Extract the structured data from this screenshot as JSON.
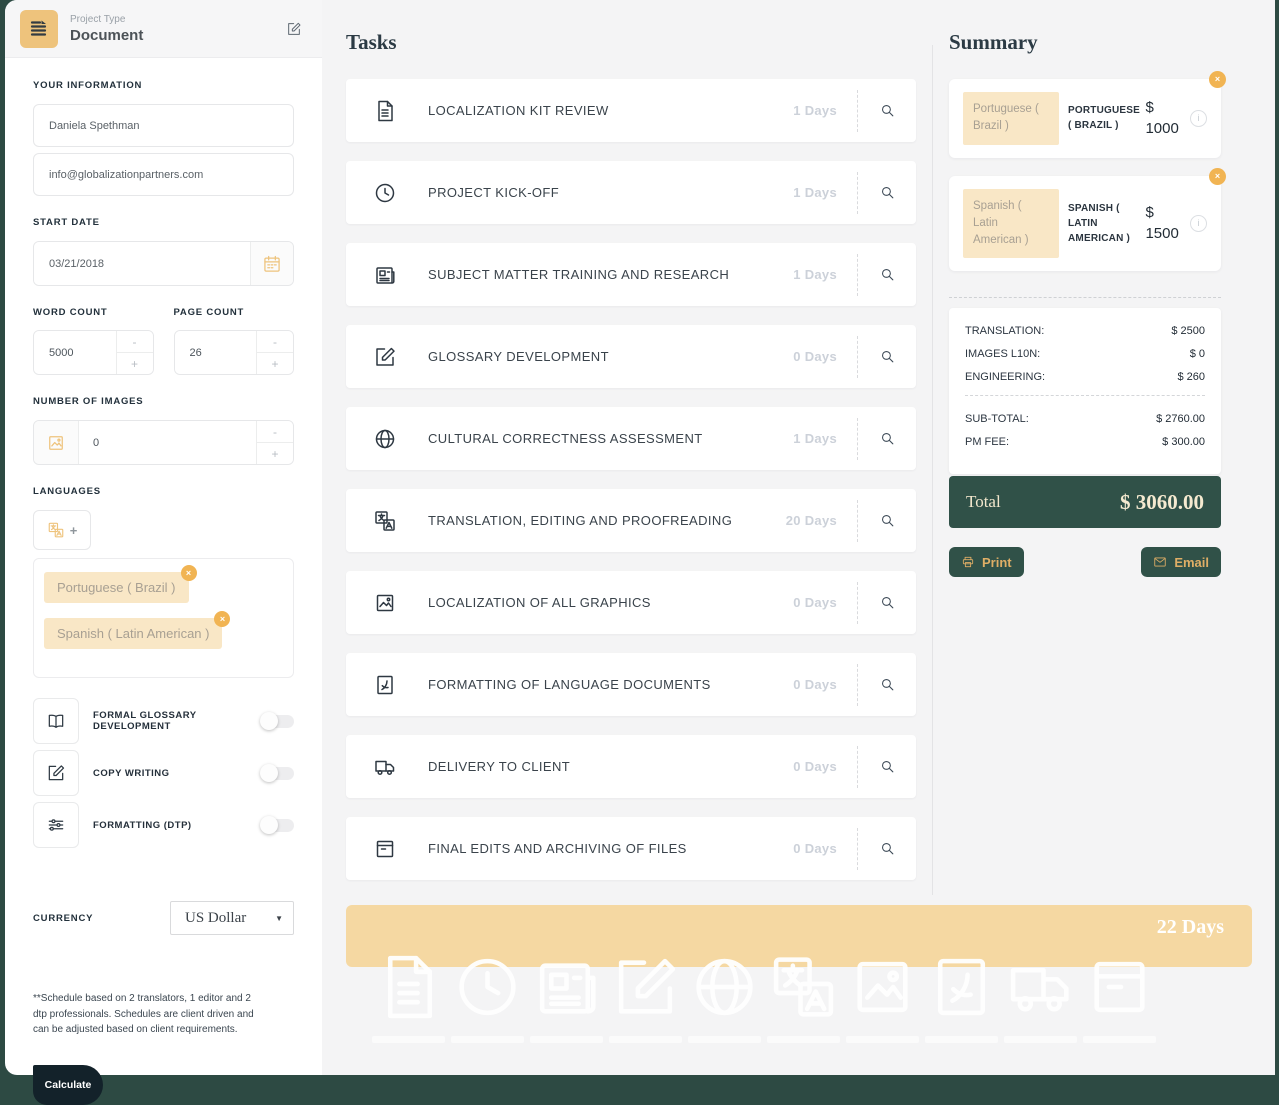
{
  "colors": {
    "green": "#305148",
    "gold": "#dfae66",
    "tan": "#eec37c",
    "chip": "#f9e7c6",
    "timeline": "#f5d8a2",
    "badge": "#f1b453",
    "calculate": "#13222a"
  },
  "sidebar": {
    "project_type": {
      "label": "Project Type",
      "value": "Document"
    },
    "your_information_label": "YOUR INFORMATION",
    "name_value": "Daniela Spethman",
    "email_value": "info@globalizationpartners.com",
    "start_date_label": "START DATE",
    "start_date_value": "03/21/2018",
    "word_count": {
      "label": "WORD COUNT",
      "value": "5000"
    },
    "page_count": {
      "label": "PAGE COUNT",
      "value": "26"
    },
    "number_of_images": {
      "label": "NUMBER OF IMAGES",
      "value": "0"
    },
    "languages_label": "LANGUAGES",
    "add_label": "+",
    "stepper": {
      "minus": "-",
      "plus": "+"
    },
    "language_chips": [
      {
        "label": "Portuguese ( Brazil )"
      },
      {
        "label": "Spanish ( Latin American )"
      }
    ],
    "toggles": [
      {
        "icon": "book-icon",
        "label": "FORMAL GLOSSARY DEVELOPMENT",
        "on": false
      },
      {
        "icon": "edit-square-icon",
        "label": "COPY WRITING",
        "on": false
      },
      {
        "icon": "sliders-icon",
        "label": "FORMATTING (DTP)",
        "on": false
      }
    ],
    "currency": {
      "label": "CURRENCY",
      "value": "US Dollar"
    },
    "note": "**Schedule based on 2 translators, 1 editor and 2 dtp professionals. Schedules are client driven and can be adjusted based on client requirements.",
    "calculate_label": "Calculate"
  },
  "tasks": {
    "title": "Tasks",
    "items": [
      {
        "icon": "document-icon",
        "label": "LOCALIZATION KIT REVIEW",
        "days": "1 Days"
      },
      {
        "icon": "clock-icon",
        "label": "PROJECT KICK-OFF",
        "days": "1 Days"
      },
      {
        "icon": "news-icon",
        "label": "SUBJECT MATTER TRAINING AND RESEARCH",
        "days": "1 Days"
      },
      {
        "icon": "edit-square-icon",
        "label": "GLOSSARY DEVELOPMENT",
        "days": "0 Days"
      },
      {
        "icon": "globe-icon",
        "label": "CULTURAL CORRECTNESS ASSESSMENT",
        "days": "1 Days"
      },
      {
        "icon": "translate-icon",
        "label": "TRANSLATION, EDITING AND PROOFREADING",
        "days": "20 Days"
      },
      {
        "icon": "image-icon",
        "label": "LOCALIZATION OF ALL GRAPHICS",
        "days": "0 Days"
      },
      {
        "icon": "pdf-icon",
        "label": "FORMATTING OF LANGUAGE DOCUMENTS",
        "days": "0 Days"
      },
      {
        "icon": "truck-icon",
        "label": "DELIVERY TO CLIENT",
        "days": "0 Days"
      },
      {
        "icon": "archive-icon",
        "label": "FINAL EDITS AND ARCHIVING OF FILES",
        "days": "0 Days"
      }
    ]
  },
  "timeline": {
    "total_label": "22 Days",
    "segments": [
      "document-icon",
      "clock-icon",
      "news-icon",
      "edit-square-icon",
      "globe-icon",
      "translate-icon",
      "image-icon",
      "pdf-icon",
      "truck-icon",
      "archive-icon"
    ]
  },
  "summary": {
    "title": "Summary",
    "languages": [
      {
        "chip": "Portuguese ( Brazil )",
        "name": "PORTUGUESE ( BRAZIL )",
        "price": "$ 1000"
      },
      {
        "chip": "Spanish ( Latin American )",
        "name": "SPANISH ( LATIN AMERICAN )",
        "price": "$ 1500"
      }
    ],
    "lines": [
      {
        "label": "TRANSLATION:",
        "value": "$ 2500"
      },
      {
        "label": "IMAGES L10N:",
        "value": "$ 0"
      },
      {
        "label": "ENGINEERING:",
        "value": "$ 260"
      }
    ],
    "totals": [
      {
        "label": "SUB-TOTAL:",
        "value": "$ 2760.00"
      },
      {
        "label": "PM FEE:",
        "value": "$ 300.00"
      }
    ],
    "total": {
      "label": "Total",
      "value": "$ 3060.00"
    },
    "print_label": "Print",
    "email_label": "Email",
    "close_glyph": "×",
    "info_glyph": "i"
  }
}
